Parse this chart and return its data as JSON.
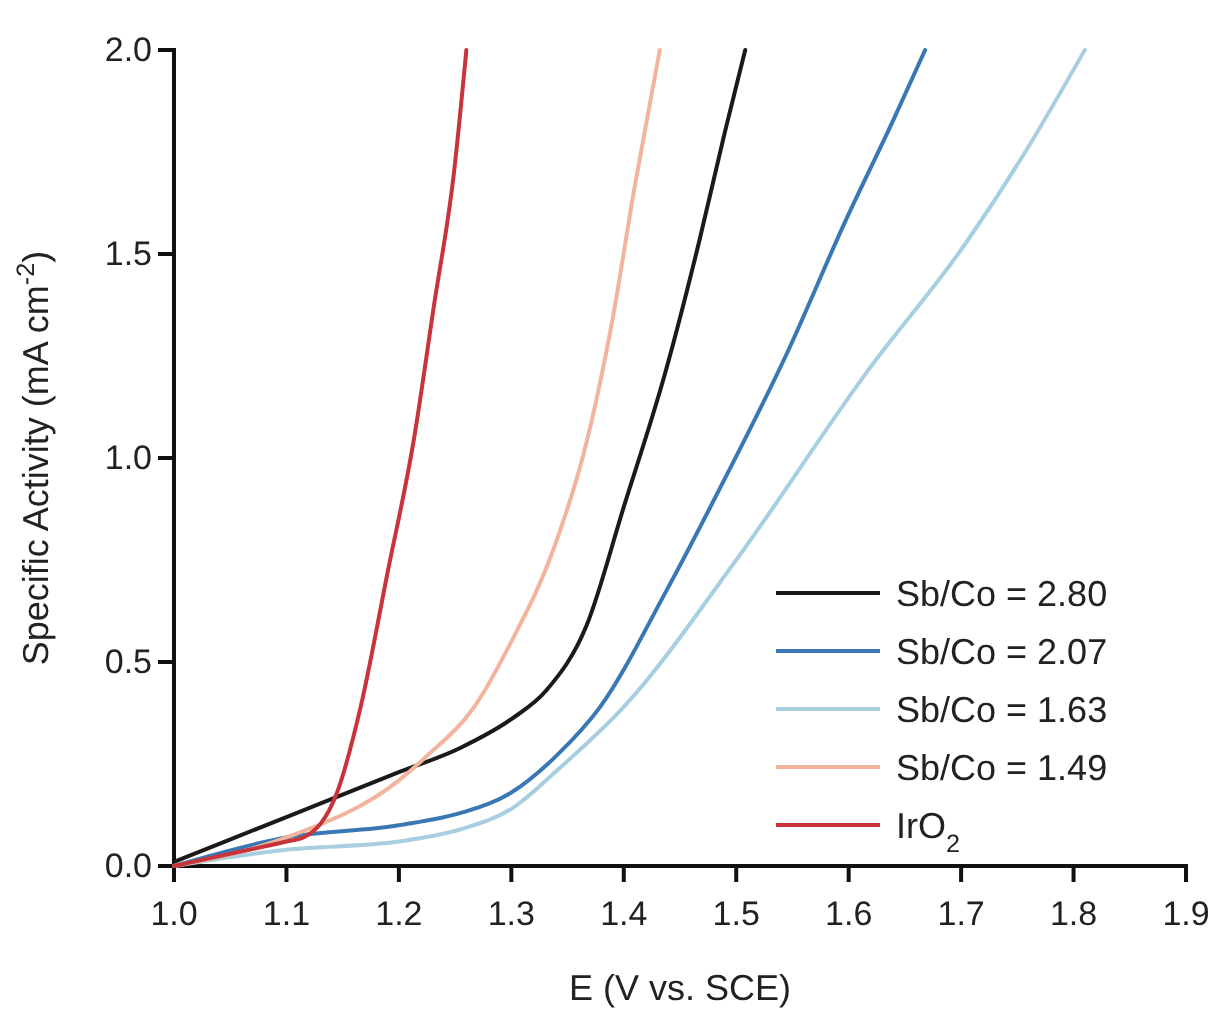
{
  "chart_data": {
    "type": "line",
    "xlabel": "E (V vs. SCE)",
    "ylabel": "Specific Activity (mA cm$^{-2}$)",
    "xlim": [
      1.0,
      1.9
    ],
    "xticks": [
      {
        "value": 1.0,
        "label": "1.0"
      },
      1.1,
      1.2,
      1.3,
      1.4,
      1.5,
      1.6,
      1.7,
      1.8,
      1.9
    ],
    "ylim": [
      0,
      2.0
    ],
    "yticks": [
      {
        "value": 0,
        "label": "0.0"
      },
      0.5,
      {
        "value": 1,
        "label": "1.0"
      },
      1.5,
      {
        "value": 2,
        "label": "2.0"
      }
    ],
    "grid": false,
    "legend": "bottom right",
    "marker": "none",
    "line_style": "solid",
    "series": [
      {
        "name": "Sb/Co = 2.80",
        "color": "#1a1a1a",
        "x": [
          1.0,
          1.1,
          1.2,
          1.255,
          1.3,
          1.331,
          1.367,
          1.4,
          1.437,
          1.467,
          1.49,
          1.508
        ],
        "values": [
          0.01,
          0.12,
          0.23,
          0.29,
          0.36,
          0.43,
          0.59,
          0.88,
          1.21,
          1.53,
          1.8,
          2.0
        ]
      },
      {
        "name": "Sb/Co = 2.07",
        "color": "#3a78b5",
        "x": [
          1.0,
          1.1,
          1.2,
          1.255,
          1.3,
          1.34,
          1.379,
          1.437,
          1.49,
          1.544,
          1.597,
          1.64,
          1.668
        ],
        "values": [
          0.0,
          0.07,
          0.1,
          0.13,
          0.18,
          0.27,
          0.39,
          0.67,
          0.95,
          1.25,
          1.58,
          1.83,
          2.0
        ]
      },
      {
        "name": "Sb/Co = 1.63",
        "color": "#a8cfe0",
        "x": [
          1.0,
          1.1,
          1.2,
          1.255,
          1.3,
          1.343,
          1.4,
          1.5,
          1.616,
          1.705,
          1.757,
          1.81
        ],
        "values": [
          0.0,
          0.04,
          0.06,
          0.09,
          0.14,
          0.24,
          0.39,
          0.75,
          1.21,
          1.53,
          1.75,
          2.0
        ]
      },
      {
        "name": "Sb/Co = 1.49",
        "color": "#f2b49c",
        "x": [
          1.0,
          1.1,
          1.2,
          1.225,
          1.267,
          1.3,
          1.338,
          1.367,
          1.39,
          1.41,
          1.432
        ],
        "values": [
          0.0,
          0.07,
          0.21,
          0.27,
          0.39,
          0.55,
          0.78,
          1.04,
          1.34,
          1.67,
          2.0
        ]
      },
      {
        "name": "IrO$_{2}$",
        "color": "#c8343a",
        "x": [
          1.0,
          1.05,
          1.1,
          1.115,
          1.145,
          1.166,
          1.19,
          1.213,
          1.231,
          1.249,
          1.26
        ],
        "values": [
          0.0,
          0.03,
          0.06,
          0.07,
          0.18,
          0.39,
          0.72,
          1.04,
          1.37,
          1.7,
          2.0
        ]
      }
    ]
  }
}
